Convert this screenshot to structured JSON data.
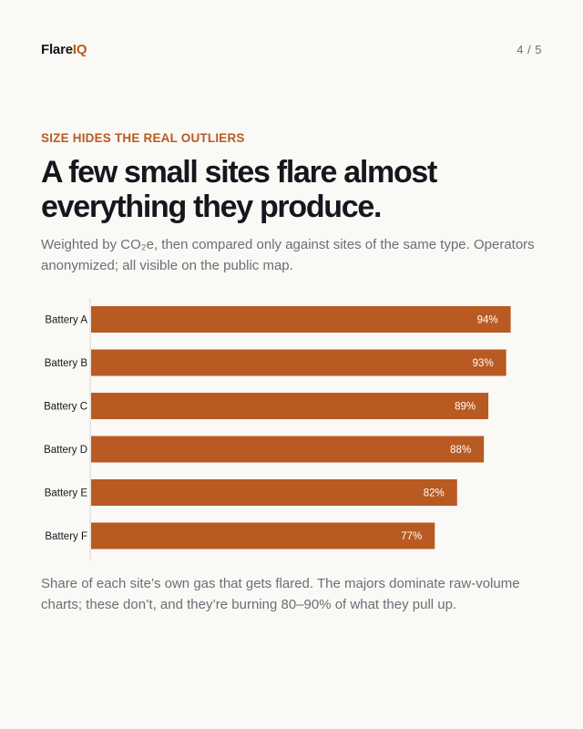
{
  "brand": {
    "part1": "Flare",
    "part2": "IQ",
    "accent": "#b85a22"
  },
  "pager": "4 / 5",
  "eyebrow": "SIZE HIDES THE REAL OUTLIERS",
  "title": "A few small sites flare almost everything they produce.",
  "subtitle": "Weighted by CO₂e, then compared only against sites of the same type. Operators anonymized; all visible on the public map.",
  "caption": "Share of each site’s own gas that gets flared. The majors dominate raw-volume charts; these don’t, and they’re burning 80–90% of what they pull up.",
  "chart_data": {
    "type": "bar",
    "orientation": "horizontal",
    "categories": [
      "Battery A",
      "Battery B",
      "Battery C",
      "Battery D",
      "Battery E",
      "Battery F"
    ],
    "values": [
      94,
      93,
      89,
      88,
      82,
      77
    ],
    "value_labels": [
      "94%",
      "93%",
      "89%",
      "88%",
      "82%",
      "77%"
    ],
    "xlim": [
      0,
      100
    ],
    "bar_color": "#b85a22",
    "grid": false
  }
}
